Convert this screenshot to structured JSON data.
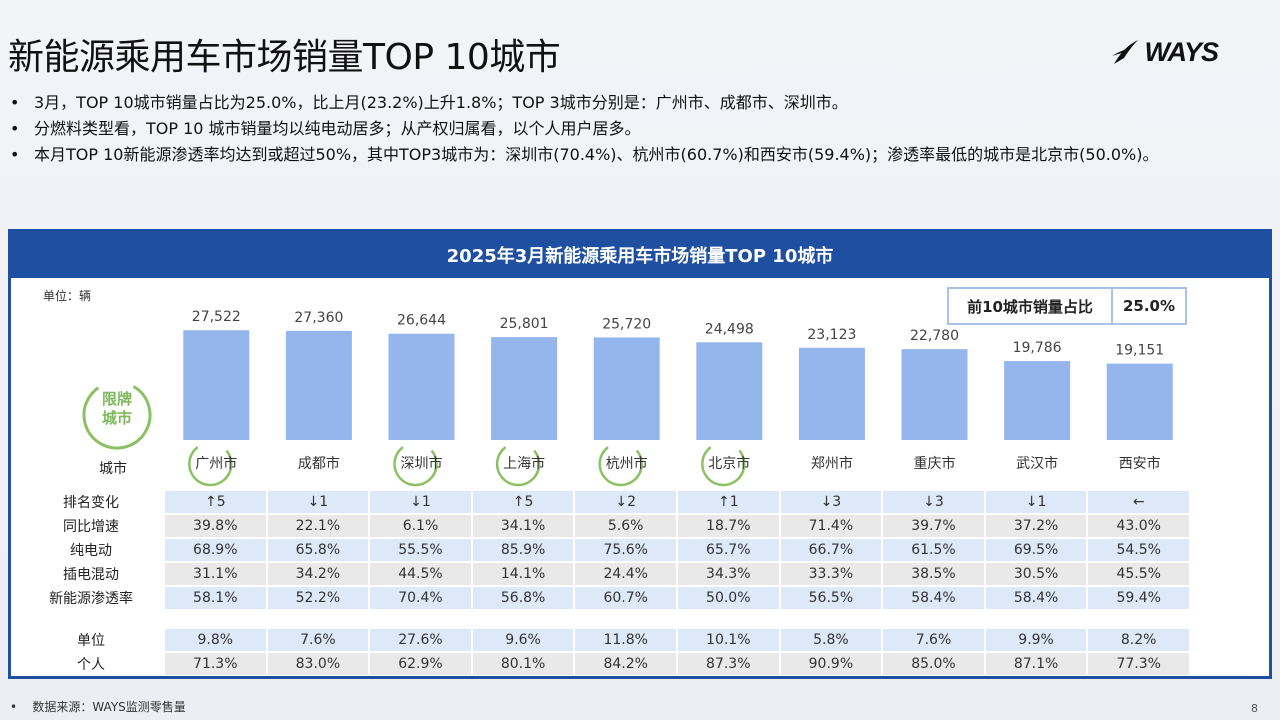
{
  "title": "新能源乘用车市场销量TOP 10城市",
  "logo_text": "WAYS",
  "bullets": [
    "3月，TOP 10城市销量占比为25.0%，比上月(23.2%)上升1.8%；TOP 3城市分别是：广州市、成都市、深圳市。",
    "分燃料类型看，TOP 10 城市销量均以纯电动居多；从产权归属看，以个人用户居多。",
    "本月TOP 10新能源渗透率均达到或超过50%，其中TOP3城市为：深圳市(70.4%)、杭州市(60.7%)和西安市(59.4%)；渗透率最低的城市是北京市(50.0%)。"
  ],
  "panel_title": "2025年3月新能源乘用车市场销量TOP 10城市",
  "unit_label": "单位：辆",
  "share_box": {
    "label": "前10城市销量占比",
    "value": "25.0%"
  },
  "badge_text": [
    "限牌",
    "城市"
  ],
  "city_row_label": "城市",
  "colors": {
    "bar": "#94b6ec",
    "header": "#1e4fa0",
    "badge": "#8cc064",
    "row_blue": "#dde8f8",
    "row_gray": "#e9e9e9"
  },
  "chart_data": {
    "type": "bar",
    "categories": [
      "广州市",
      "成都市",
      "深圳市",
      "上海市",
      "杭州市",
      "北京市",
      "郑州市",
      "重庆市",
      "武汉市",
      "西安市"
    ],
    "values": [
      27522,
      27360,
      26644,
      25801,
      25720,
      24498,
      23123,
      22780,
      19786,
      19151
    ],
    "value_labels": [
      "27,522",
      "27,360",
      "26,644",
      "25,801",
      "25,720",
      "24,498",
      "23,123",
      "22,780",
      "19,786",
      "19,151"
    ],
    "title": "2025年3月新能源乘用车市场销量TOP 10城市",
    "ylabel": "单位：辆",
    "ylim": [
      0,
      28000
    ],
    "restricted_cities": [
      "广州市",
      "深圳市",
      "上海市",
      "杭州市",
      "北京市"
    ]
  },
  "table": {
    "group1": [
      {
        "label": "排名变化",
        "style": "blue",
        "values": [
          "↑5",
          "↓1",
          "↓1",
          "↑5",
          "↓2",
          "↑1",
          "↓3",
          "↓3",
          "↓1",
          "←"
        ]
      },
      {
        "label": "同比增速",
        "style": "gray",
        "values": [
          "39.8%",
          "22.1%",
          "6.1%",
          "34.1%",
          "5.6%",
          "18.7%",
          "71.4%",
          "39.7%",
          "37.2%",
          "43.0%"
        ]
      },
      {
        "label": "纯电动",
        "style": "blue",
        "values": [
          "68.9%",
          "65.8%",
          "55.5%",
          "85.9%",
          "75.6%",
          "65.7%",
          "66.7%",
          "61.5%",
          "69.5%",
          "54.5%"
        ]
      },
      {
        "label": "插电混动",
        "style": "gray",
        "values": [
          "31.1%",
          "34.2%",
          "44.5%",
          "14.1%",
          "24.4%",
          "34.3%",
          "33.3%",
          "38.5%",
          "30.5%",
          "45.5%"
        ]
      },
      {
        "label": "新能源渗透率",
        "style": "blue",
        "values": [
          "58.1%",
          "52.2%",
          "70.4%",
          "56.8%",
          "60.7%",
          "50.0%",
          "56.5%",
          "58.4%",
          "58.4%",
          "59.4%"
        ]
      }
    ],
    "group2": [
      {
        "label": "单位",
        "style": "blue",
        "values": [
          "9.8%",
          "7.6%",
          "27.6%",
          "9.6%",
          "11.8%",
          "10.1%",
          "5.8%",
          "7.6%",
          "9.9%",
          "8.2%"
        ]
      },
      {
        "label": "个人",
        "style": "gray",
        "values": [
          "71.3%",
          "83.0%",
          "62.9%",
          "80.1%",
          "84.2%",
          "87.3%",
          "90.9%",
          "85.0%",
          "87.1%",
          "77.3%"
        ]
      }
    ]
  },
  "source": "数据来源：WAYS监测零售量",
  "page_number": "8"
}
